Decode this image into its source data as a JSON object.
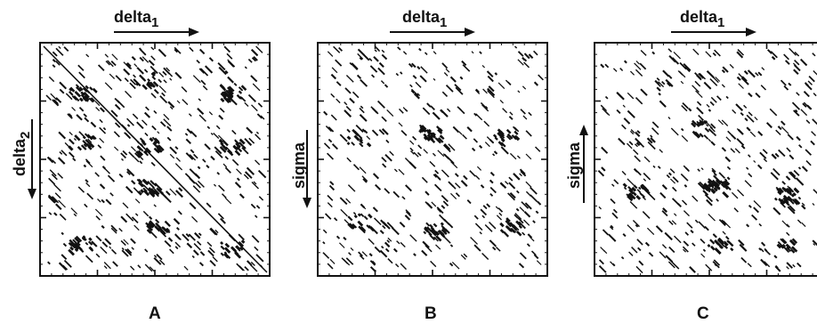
{
  "panels": [
    {
      "id": "A",
      "panel_label": "A",
      "top_axis": {
        "text": "delta",
        "sub": "1",
        "arrow": "right"
      },
      "side_axis": {
        "text": "delta",
        "sub": "2",
        "arrow": "down"
      },
      "has_main_diagonal": true
    },
    {
      "id": "B",
      "panel_label": "B",
      "top_axis": {
        "text": "delta",
        "sub": "1",
        "arrow": "right"
      },
      "side_axis": {
        "text": "sigma",
        "sub": "",
        "arrow": "down"
      },
      "has_main_diagonal": false
    },
    {
      "id": "C",
      "panel_label": "C",
      "top_axis": {
        "text": "delta",
        "sub": "1",
        "arrow": "right"
      },
      "side_axis": {
        "text": "sigma",
        "sub": "",
        "arrow": "up"
      },
      "has_main_diagonal": false
    }
  ],
  "colors": {
    "ink": "#111111",
    "background": "#ffffff"
  }
}
